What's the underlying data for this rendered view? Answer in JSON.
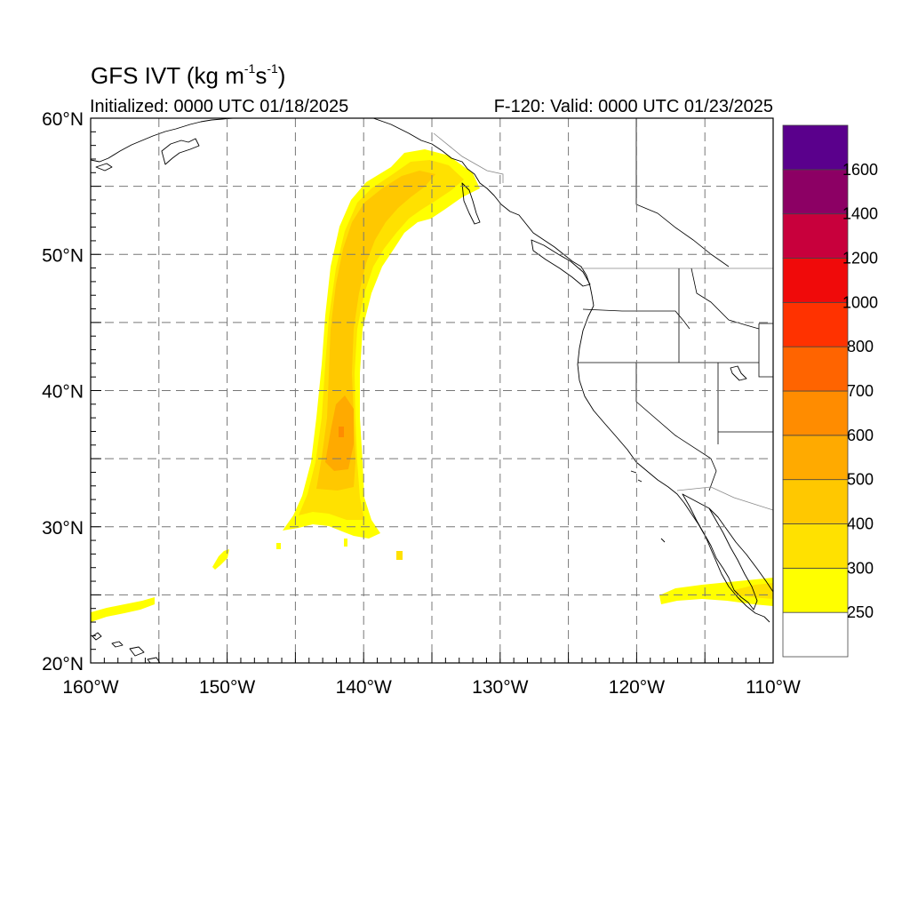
{
  "title": {
    "main_prefix": "GFS IVT (kg m",
    "unit_exp1": "-1",
    "unit_mid": "s",
    "unit_exp2": "-1",
    "main_suffix": ")",
    "initialized": "Initialized: 0000 UTC 01/18/2025",
    "valid": "F-120: Valid: 0000 UTC 01/23/2025"
  },
  "map": {
    "lon_range": [
      -160,
      -110
    ],
    "lat_range": [
      20,
      60
    ],
    "lon_ticks": [
      {
        "value": -160,
        "label": "160°W"
      },
      {
        "value": -150,
        "label": "150°W"
      },
      {
        "value": -140,
        "label": "140°W"
      },
      {
        "value": -130,
        "label": "130°W"
      },
      {
        "value": -120,
        "label": "120°W"
      },
      {
        "value": -110,
        "label": "110°W"
      }
    ],
    "lat_ticks": [
      {
        "value": 20,
        "label": "20°N"
      },
      {
        "value": 30,
        "label": "30°N"
      },
      {
        "value": 40,
        "label": "40°N"
      },
      {
        "value": 50,
        "label": "50°N"
      },
      {
        "value": 60,
        "label": "60°N"
      }
    ],
    "grid_lons": [
      -155,
      -150,
      -145,
      -140,
      -135,
      -130,
      -125,
      -120,
      -115
    ],
    "grid_lats": [
      25,
      30,
      35,
      40,
      45,
      50,
      55
    ],
    "grid_style": "dashed"
  },
  "colorbar": {
    "labels": [
      "250",
      "300",
      "400",
      "500",
      "600",
      "700",
      "800",
      "1000",
      "1200",
      "1400",
      "1600"
    ],
    "colors": [
      "#ffffff",
      "#ffff00",
      "#ffe100",
      "#ffc800",
      "#ffaa00",
      "#ff8c00",
      "#ff6400",
      "#ff3200",
      "#f00a0a",
      "#c8003c",
      "#8c0064",
      "#5a008c"
    ]
  },
  "ivt_features": {
    "river_spine": [
      {
        "lon": -143.8,
        "lat": 30.5,
        "ivt": 320
      },
      {
        "lon": -142.5,
        "lat": 35.0,
        "ivt": 420
      },
      {
        "lon": -141.5,
        "lat": 37.0,
        "ivt": 520
      },
      {
        "lon": -141.5,
        "lat": 40.0,
        "ivt": 430
      },
      {
        "lon": -141.6,
        "lat": 45.0,
        "ivt": 410
      },
      {
        "lon": -141.0,
        "lat": 50.0,
        "ivt": 380
      },
      {
        "lon": -139.0,
        "lat": 54.0,
        "ivt": 380
      },
      {
        "lon": -135.0,
        "lat": 56.0,
        "ivt": 350
      }
    ],
    "patches": [
      {
        "name": "hawaii-band",
        "lon_range": [
          -160,
          -155
        ],
        "lat_range": [
          23.5,
          24.8
        ],
        "ivt": 280
      },
      {
        "name": "baja-band",
        "lon_range": [
          -118,
          -110
        ],
        "lat_range": [
          24.5,
          26.3
        ],
        "ivt": 300
      },
      {
        "name": "speckle-west",
        "lon_range": [
          -151,
          -150
        ],
        "lat_range": [
          27.5,
          28.3
        ],
        "ivt": 260
      },
      {
        "name": "speckle-east",
        "lon_range": [
          -137.5,
          -137
        ],
        "lat_range": [
          27.8,
          28.3
        ],
        "ivt": 260
      }
    ]
  }
}
